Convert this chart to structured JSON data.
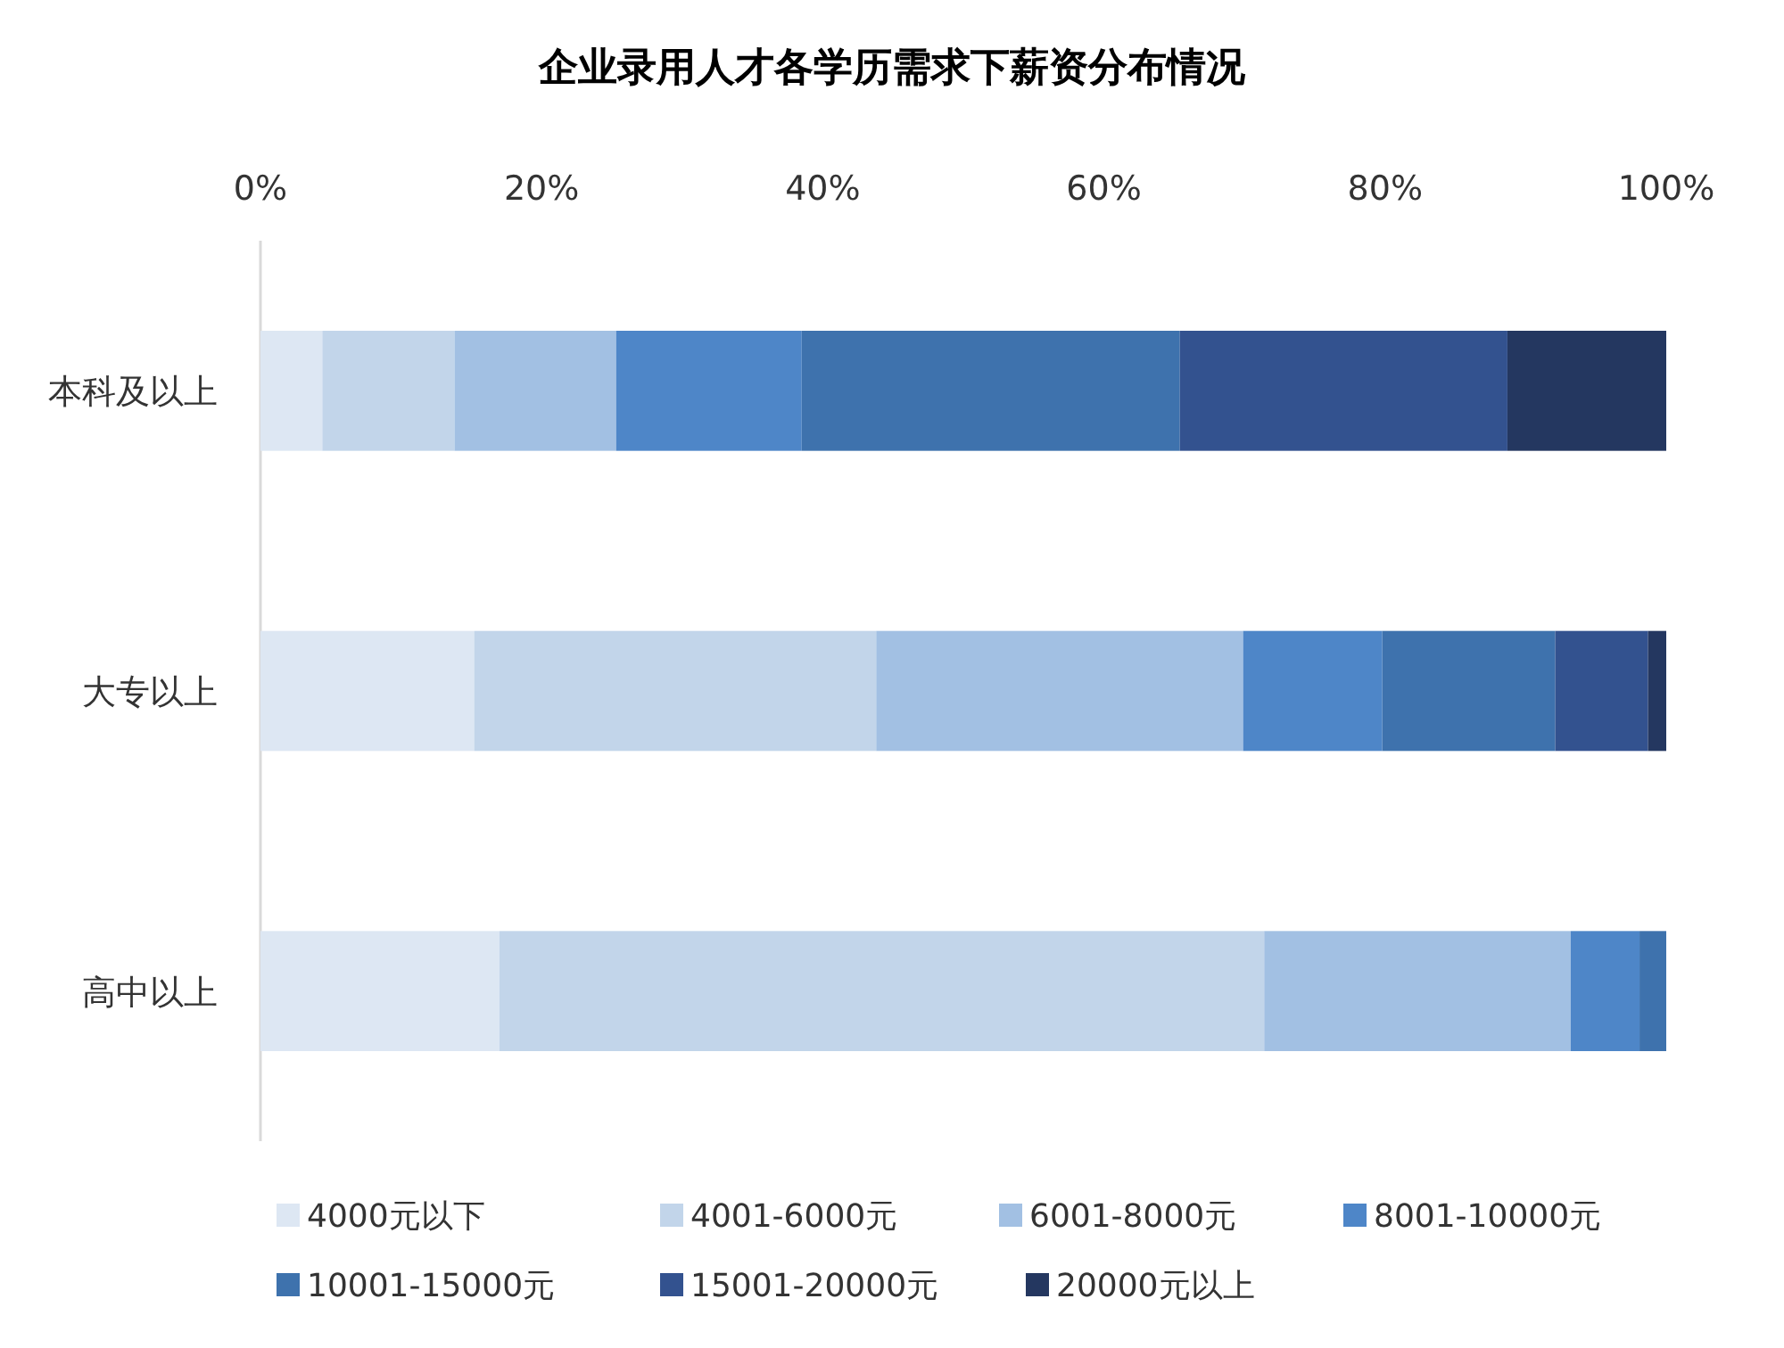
{
  "chart_data": {
    "type": "bar",
    "title": "企业录用人才各学历需求下薪资分布情况",
    "orientation": "horizontal",
    "stacked": true,
    "categories": [
      "本科及以上",
      "大专以上",
      "高中以上"
    ],
    "series": [
      {
        "name": "4000元以下",
        "color": "#dde7f3",
        "values": [
          4.4,
          15.2,
          17.0
        ]
      },
      {
        "name": "4001-6000元",
        "color": "#c2d5ea",
        "values": [
          9.4,
          28.6,
          54.4
        ]
      },
      {
        "name": "6001-8000元",
        "color": "#a2c0e3",
        "values": [
          11.5,
          26.1,
          21.8
        ]
      },
      {
        "name": "8001-10000元",
        "color": "#4e86c8",
        "values": [
          13.2,
          9.9,
          4.9
        ]
      },
      {
        "name": "10001-15000元",
        "color": "#3e72ad",
        "values": [
          26.9,
          12.3,
          1.9
        ]
      },
      {
        "name": "15001-20000元",
        "color": "#33528f",
        "values": [
          23.3,
          6.6,
          0
        ]
      },
      {
        "name": "20000元以上",
        "color": "#243760",
        "values": [
          11.3,
          1.3,
          0
        ]
      }
    ],
    "xlim": [
      0,
      100
    ],
    "xticks": [
      {
        "value": 0,
        "label": "0%"
      },
      {
        "value": 20,
        "label": "20%"
      },
      {
        "value": 40,
        "label": "40%"
      },
      {
        "value": 60,
        "label": "60%"
      },
      {
        "value": 80,
        "label": "80%"
      },
      {
        "value": 100,
        "label": "100%"
      }
    ],
    "grid": false,
    "legend": "bottom"
  }
}
